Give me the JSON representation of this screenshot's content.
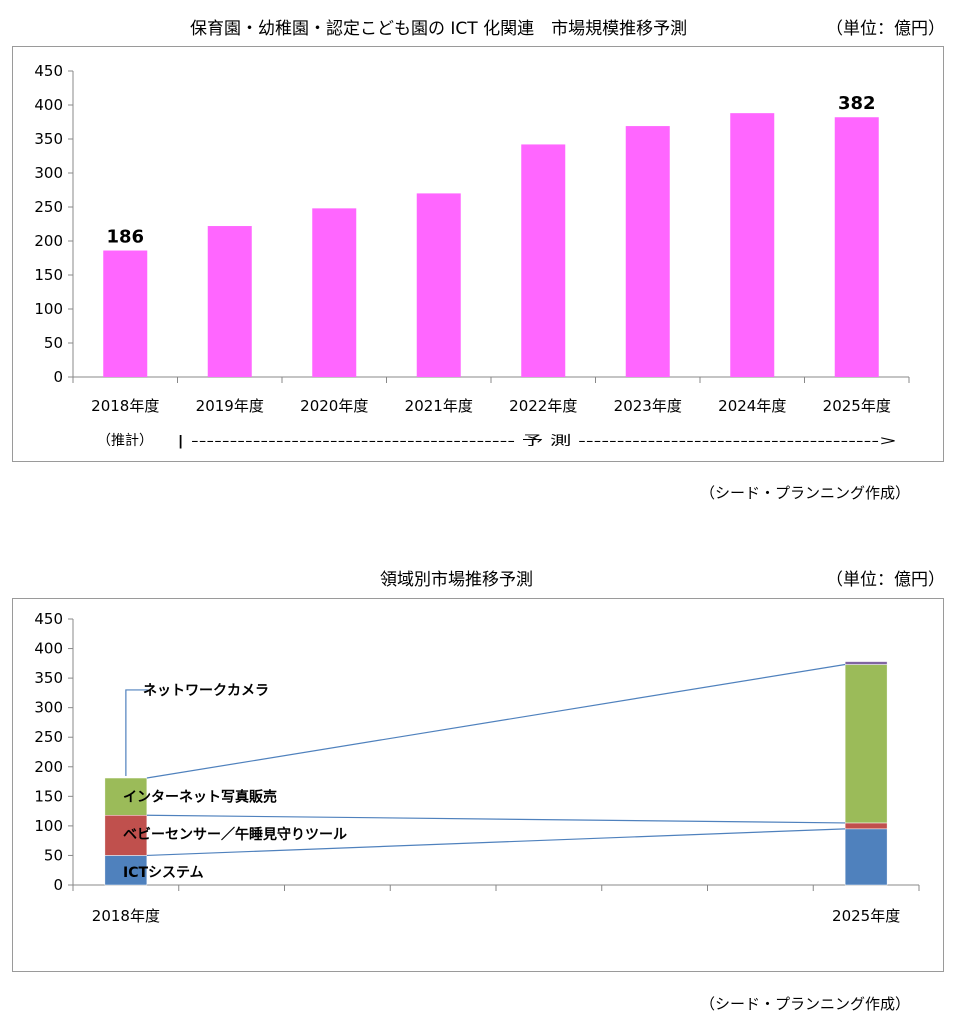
{
  "chart1": {
    "title": "保育園・幼稚園・認定こども園の ICT 化関連　市場規模推移予測",
    "unit": "（単位：億円）",
    "note_estimate": "（推計）",
    "note_forecast": "|  ------------------------------------------  予 測  --------------------------------------->",
    "credit": "（シード・プランニング作成）"
  },
  "chart2": {
    "title": "領域別市場推移予測",
    "unit": "（単位：億円）",
    "credit": "（シード・プランニング作成）"
  },
  "chart_data": [
    {
      "type": "bar",
      "title": "保育園・幼稚園・認定こども園の ICT 化関連　市場規模推移予測",
      "categories": [
        "2018年度",
        "2019年度",
        "2020年度",
        "2021年度",
        "2022年度",
        "2023年度",
        "2024年度",
        "2025年度"
      ],
      "values": [
        186,
        222,
        248,
        270,
        342,
        369,
        388,
        382
      ],
      "data_labels": {
        "0": "186",
        "7": "382"
      },
      "yticks": [
        "0",
        "50",
        "100",
        "150",
        "200",
        "250",
        "300",
        "350",
        "400",
        "450"
      ],
      "ylim": [
        0,
        450
      ],
      "color": "#ff66ff",
      "grid": false
    },
    {
      "type": "bar",
      "subtype": "stacked",
      "title": "領域別市場推移予測",
      "categories": [
        "2018年度",
        "2025年度"
      ],
      "yticks": [
        "0",
        "50",
        "100",
        "150",
        "200",
        "250",
        "300",
        "350",
        "400",
        "450"
      ],
      "ylim": [
        0,
        450
      ],
      "series": [
        {
          "name": "ICTシステム",
          "values": [
            50,
            95
          ],
          "color": "#4f81bd"
        },
        {
          "name": "ベビーセンサー／午睡見守りツール",
          "values": [
            68,
            10
          ],
          "color": "#c0504d"
        },
        {
          "name": "インターネット写真販売",
          "values": [
            63,
            268
          ],
          "color": "#9bbb59"
        },
        {
          "name": "ネットワークカメラ",
          "values": [
            0,
            5
          ],
          "color": "#8064a2"
        }
      ],
      "grid": false
    }
  ]
}
